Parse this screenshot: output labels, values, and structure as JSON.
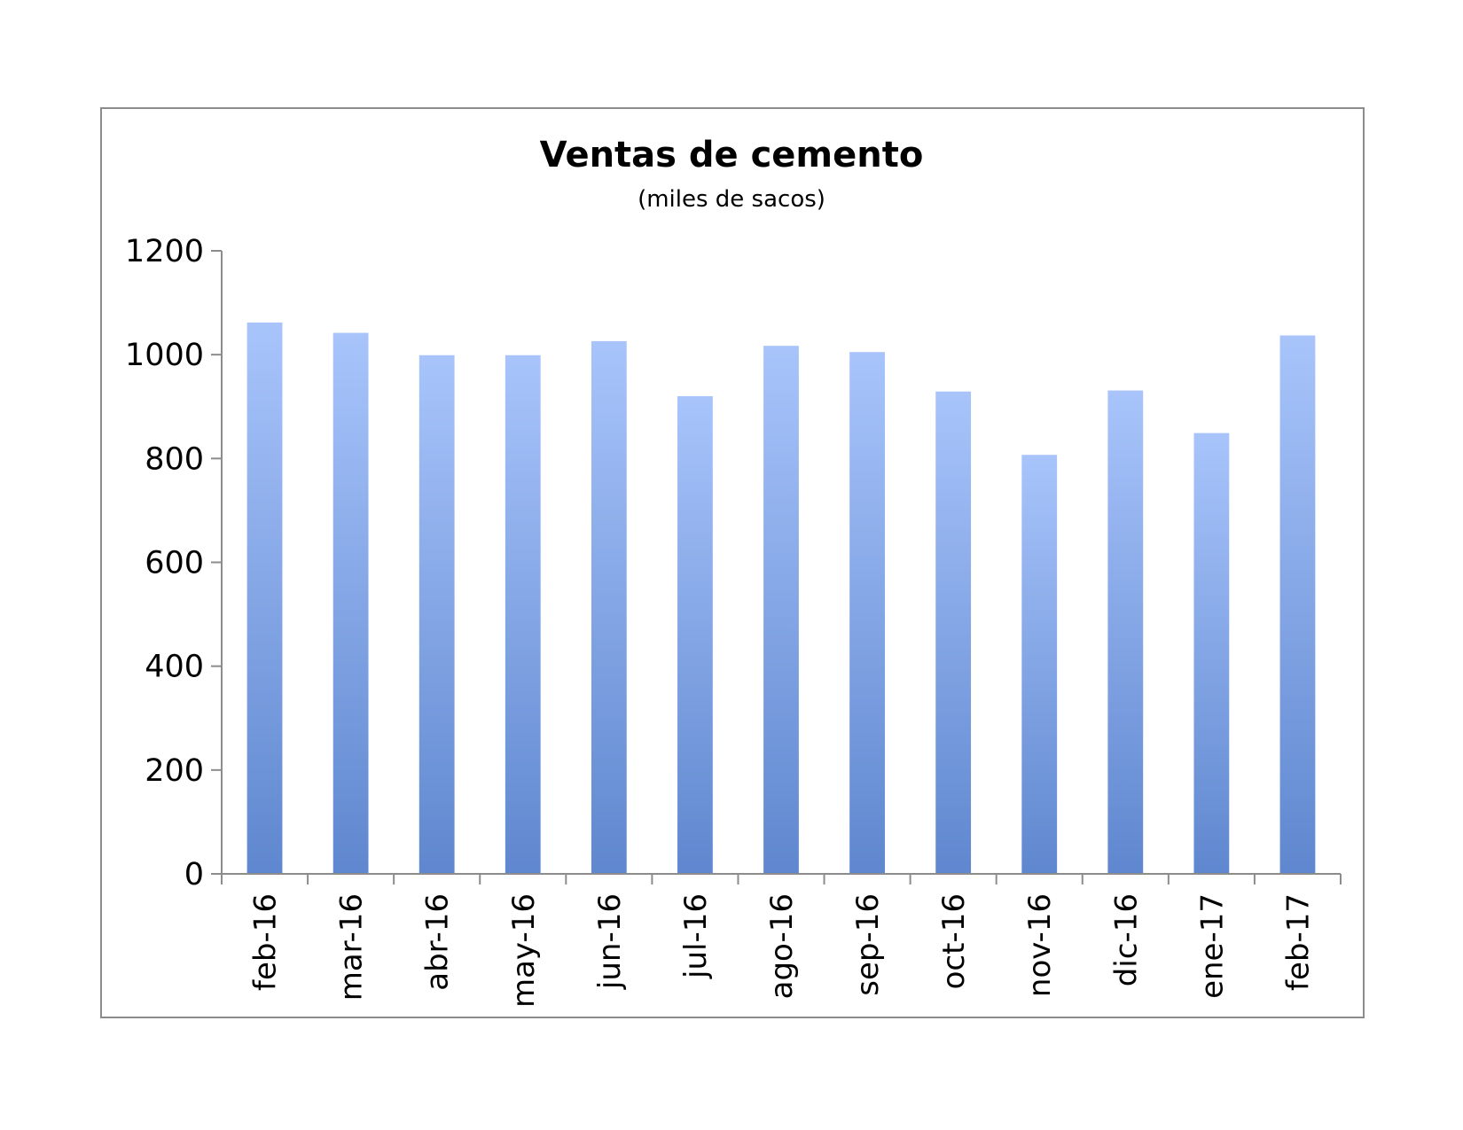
{
  "chart_data": {
    "type": "bar",
    "title": "Ventas de cemento",
    "subtitle": "(miles de sacos)",
    "categories": [
      "feb-16",
      "mar-16",
      "abr-16",
      "may-16",
      "jun-16",
      "jul-16",
      "ago-16",
      "sep-16",
      "oct-16",
      "nov-16",
      "dic-16",
      "ene-17",
      "feb-17"
    ],
    "values": [
      1062,
      1042,
      999,
      999,
      1026,
      920,
      1017,
      1005,
      929,
      807,
      931,
      849,
      1037
    ],
    "ylim": [
      0,
      1200
    ],
    "yticks": [
      "0",
      "200",
      "400",
      "600",
      "800",
      "1000",
      "1200"
    ],
    "xlabel": "",
    "ylabel": "",
    "grid": false,
    "legend": "none",
    "bar_color_top": "#a8c4fb",
    "bar_color_bottom": "#5f87cf"
  }
}
